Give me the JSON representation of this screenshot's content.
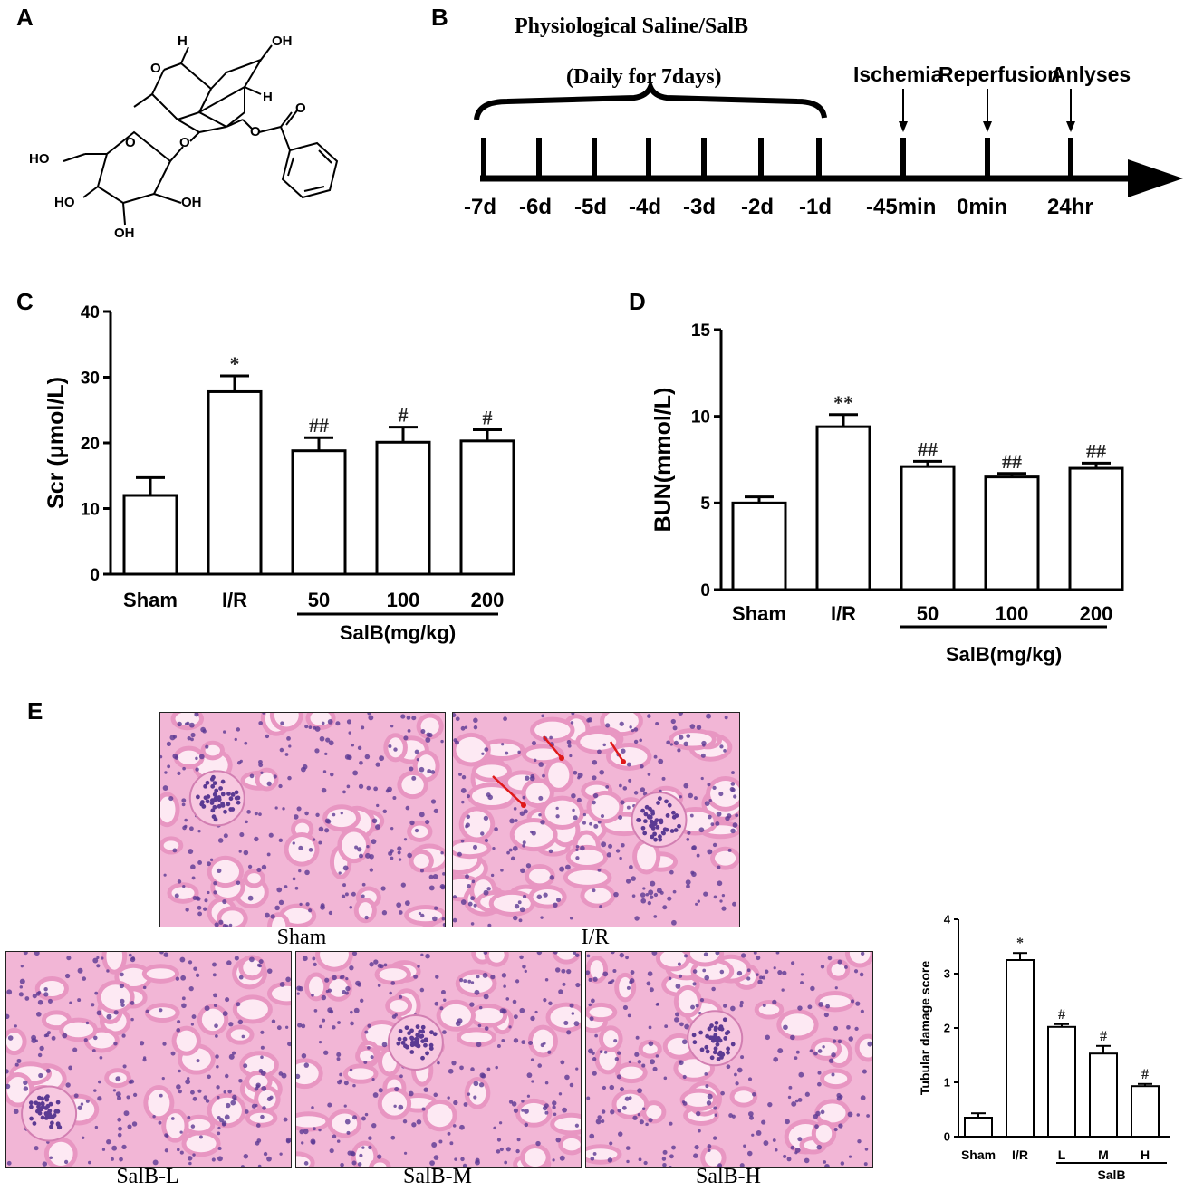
{
  "panels": {
    "a": {
      "letter": "A"
    },
    "b": {
      "letter": "B"
    },
    "c": {
      "letter": "C"
    },
    "d": {
      "letter": "D"
    },
    "e": {
      "letter": "E"
    }
  },
  "structure": {
    "labels": [
      "H",
      "OH",
      "O",
      "H",
      "O",
      "O",
      "HO",
      "O",
      "O",
      "HO",
      "OH",
      "OH"
    ]
  },
  "timeline": {
    "treatment_label": "Physiological Saline/SalB",
    "daily_label": "(Daily for 7days)",
    "ticks": [
      "-7d",
      "-6d",
      "-5d",
      "-4d",
      "-3d",
      "-2d",
      "-1d",
      "-45min",
      "0min",
      "24hr"
    ],
    "events": [
      "Ischemia",
      "Reperfusion",
      "Anlyses"
    ]
  },
  "chart_data": [
    {
      "type": "bar",
      "panel": "C",
      "ylabel": "Scr (μmol/L)",
      "categories": [
        "Sham",
        "I/R",
        "50",
        "100",
        "200"
      ],
      "group_label": "SalB(mg/kg)",
      "values": [
        12,
        27.8,
        18.8,
        20.1,
        20.3
      ],
      "errors": [
        2.7,
        2.4,
        2.0,
        2.3,
        1.7
      ],
      "annotations": [
        "",
        "*",
        "##",
        "#",
        "#"
      ],
      "yticks": [
        "0",
        "10",
        "20",
        "30",
        "40"
      ],
      "ylim": [
        0,
        40
      ]
    },
    {
      "type": "bar",
      "panel": "D",
      "ylabel": "BUN(mmol/L)",
      "categories": [
        "Sham",
        "I/R",
        "50",
        "100",
        "200"
      ],
      "group_label": "SalB(mg/kg)",
      "values": [
        5.0,
        9.4,
        7.1,
        6.5,
        7.0
      ],
      "errors": [
        0.35,
        0.7,
        0.3,
        0.2,
        0.3
      ],
      "annotations": [
        "",
        "**",
        "##",
        "##",
        "##"
      ],
      "yticks": [
        "0",
        "5",
        "10",
        "15"
      ],
      "ylim": [
        0,
        15
      ]
    },
    {
      "type": "bar",
      "panel": "E",
      "ylabel": "Tubular damage score",
      "categories": [
        "Sham",
        "I/R",
        "L",
        "M",
        "H"
      ],
      "group_label": "SalB",
      "values": [
        0.35,
        3.25,
        2.02,
        1.53,
        0.93
      ],
      "errors": [
        0.08,
        0.13,
        0.05,
        0.14,
        0.04
      ],
      "annotations": [
        "",
        "*",
        "#",
        "#",
        "#"
      ],
      "yticks": [
        "0",
        "1",
        "2",
        "3",
        "4"
      ],
      "ylim": [
        0,
        4
      ]
    }
  ],
  "histology": {
    "captions": [
      "Sham",
      "I/R",
      "SalB-L",
      "SalB-M",
      "SalB-H"
    ],
    "colors": {
      "background": "#f2b6d6",
      "cell": "#e896c2",
      "nucleus": "#5b3a93",
      "lumen": "#fde9f3",
      "arrow": "#e01919"
    }
  }
}
